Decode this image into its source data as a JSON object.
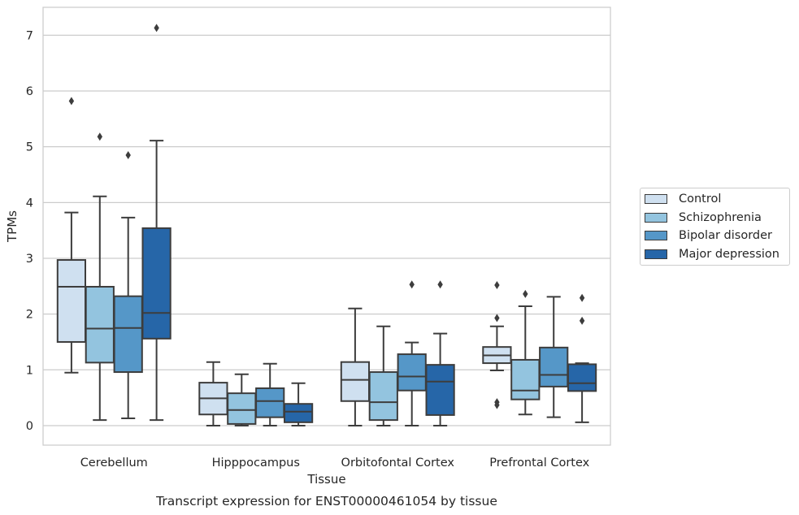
{
  "chart_data": {
    "type": "box",
    "title": "Transcript expression for ENST00000461054 by tissue",
    "xlabel": "Tissue",
    "ylabel": "TPMs",
    "ylim": [
      -0.35,
      7.5
    ],
    "yticks": [
      0,
      1,
      2,
      3,
      4,
      5,
      6,
      7
    ],
    "grid": true,
    "legend_position": "right",
    "categories": [
      "Cerebellum",
      "Hipppocampus",
      "Orbitofontal Cortex",
      "Prefrontal Cortex"
    ],
    "series": [
      {
        "name": "Control",
        "color": "#cfe0f0",
        "boxes": [
          {
            "whislo": 0.95,
            "q1": 1.5,
            "med": 2.49,
            "q3": 2.97,
            "whishi": 3.82,
            "fliers": [
              5.82
            ]
          },
          {
            "whislo": 0.0,
            "q1": 0.2,
            "med": 0.49,
            "q3": 0.77,
            "whishi": 1.14,
            "fliers": []
          },
          {
            "whislo": 0.0,
            "q1": 0.44,
            "med": 0.82,
            "q3": 1.14,
            "whishi": 2.1,
            "fliers": []
          },
          {
            "whislo": 0.99,
            "q1": 1.12,
            "med": 1.26,
            "q3": 1.41,
            "whishi": 1.78,
            "fliers": [
              2.52,
              1.93,
              0.42,
              0.37
            ]
          }
        ]
      },
      {
        "name": "Schizophrenia",
        "color": "#93c4df",
        "boxes": [
          {
            "whislo": 0.1,
            "q1": 1.13,
            "med": 1.74,
            "q3": 2.49,
            "whishi": 4.11,
            "fliers": [
              5.18
            ]
          },
          {
            "whislo": 0.0,
            "q1": 0.03,
            "med": 0.28,
            "q3": 0.58,
            "whishi": 0.92,
            "fliers": []
          },
          {
            "whislo": 0.0,
            "q1": 0.1,
            "med": 0.42,
            "q3": 0.96,
            "whishi": 1.78,
            "fliers": []
          },
          {
            "whislo": 0.2,
            "q1": 0.47,
            "med": 0.63,
            "q3": 1.18,
            "whishi": 2.14,
            "fliers": [
              2.36
            ]
          }
        ]
      },
      {
        "name": "Bipolar disorder",
        "color": "#5597c8",
        "boxes": [
          {
            "whislo": 0.13,
            "q1": 0.96,
            "med": 1.75,
            "q3": 2.32,
            "whishi": 3.73,
            "fliers": [
              4.85
            ]
          },
          {
            "whislo": 0.0,
            "q1": 0.15,
            "med": 0.44,
            "q3": 0.67,
            "whishi": 1.11,
            "fliers": []
          },
          {
            "whislo": 0.0,
            "q1": 0.63,
            "med": 0.88,
            "q3": 1.28,
            "whishi": 1.49,
            "fliers": [
              2.53
            ]
          },
          {
            "whislo": 0.15,
            "q1": 0.7,
            "med": 0.91,
            "q3": 1.4,
            "whishi": 2.31,
            "fliers": []
          }
        ]
      },
      {
        "name": "Major depression",
        "color": "#2666a8",
        "boxes": [
          {
            "whislo": 0.1,
            "q1": 1.56,
            "med": 2.02,
            "q3": 3.54,
            "whishi": 5.11,
            "fliers": [
              7.13
            ]
          },
          {
            "whislo": 0.0,
            "q1": 0.06,
            "med": 0.25,
            "q3": 0.39,
            "whishi": 0.76,
            "fliers": []
          },
          {
            "whislo": 0.0,
            "q1": 0.19,
            "med": 0.79,
            "q3": 1.09,
            "whishi": 1.65,
            "fliers": [
              2.53
            ]
          },
          {
            "whislo": 0.06,
            "q1": 0.62,
            "med": 0.76,
            "q3": 1.1,
            "whishi": 1.12,
            "fliers": [
              2.29,
              1.88
            ]
          }
        ]
      }
    ]
  }
}
